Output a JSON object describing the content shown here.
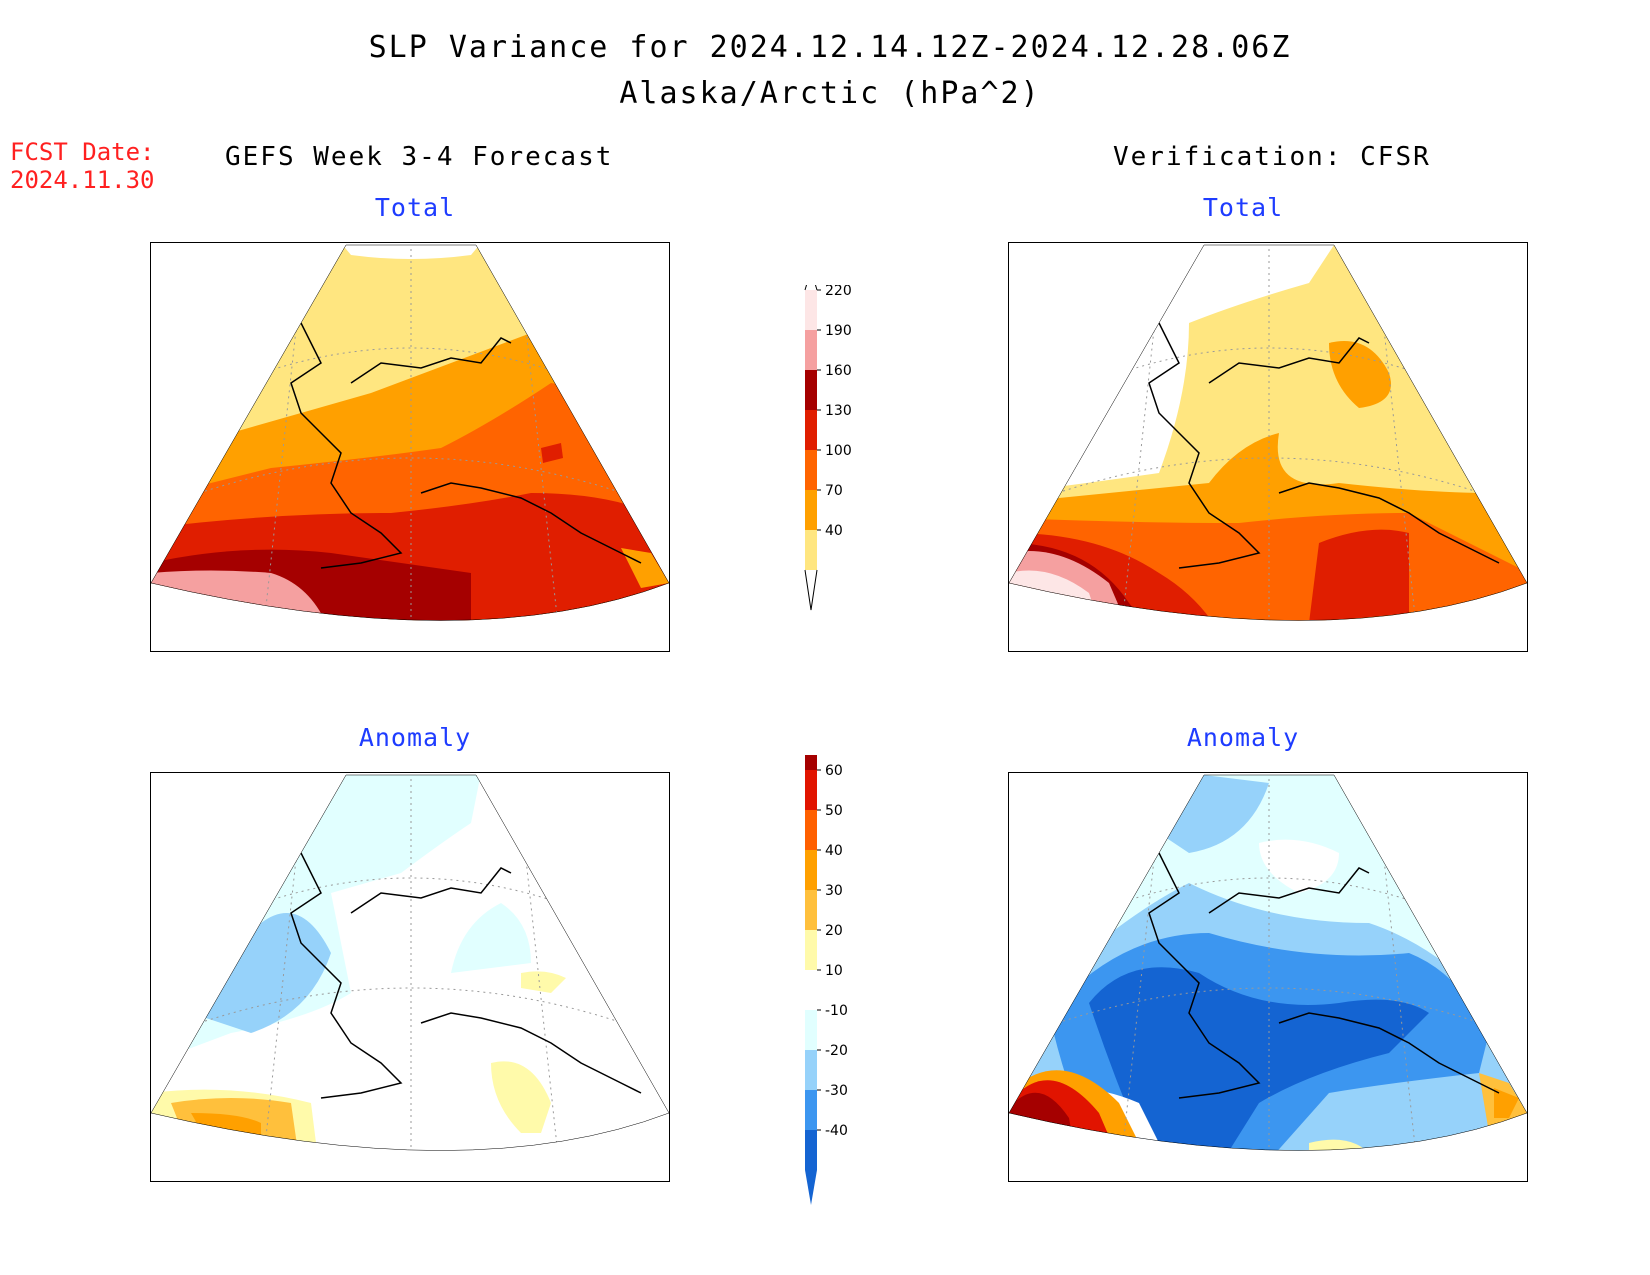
{
  "title": {
    "main": "SLP Variance for 2024.12.14.12Z-2024.12.28.06Z",
    "sub": "Alaska/Arctic (hPa^2)"
  },
  "forecast_date": {
    "label": "FCST Date:",
    "value": "2024.11.30"
  },
  "columns": {
    "left": "GEFS Week 3-4 Forecast",
    "right": "Verification: CFSR"
  },
  "panels": {
    "forecast_total": "Total",
    "verification_total": "Total",
    "forecast_anomaly": "Anomaly",
    "verification_anomaly": "Anomaly"
  },
  "colorbars": {
    "total": {
      "labels": [
        "40",
        "70",
        "100",
        "130",
        "160",
        "190",
        "220"
      ],
      "colors": [
        "#ffe680",
        "#ffa000",
        "#ff6400",
        "#e01e00",
        "#a50000",
        "#f5a0a0",
        "#fde6e6"
      ]
    },
    "anomaly": {
      "labels": [
        "-40",
        "-30",
        "-20",
        "-10",
        "10",
        "20",
        "30",
        "40",
        "50",
        "60"
      ],
      "colors": [
        "#1464d2",
        "#3c96f0",
        "#96d2fa",
        "#e1ffff",
        "#ffffff",
        "#fffaaa",
        "#ffc03c",
        "#ffa000",
        "#ff6000",
        "#e11400",
        "#a50000"
      ]
    }
  }
}
